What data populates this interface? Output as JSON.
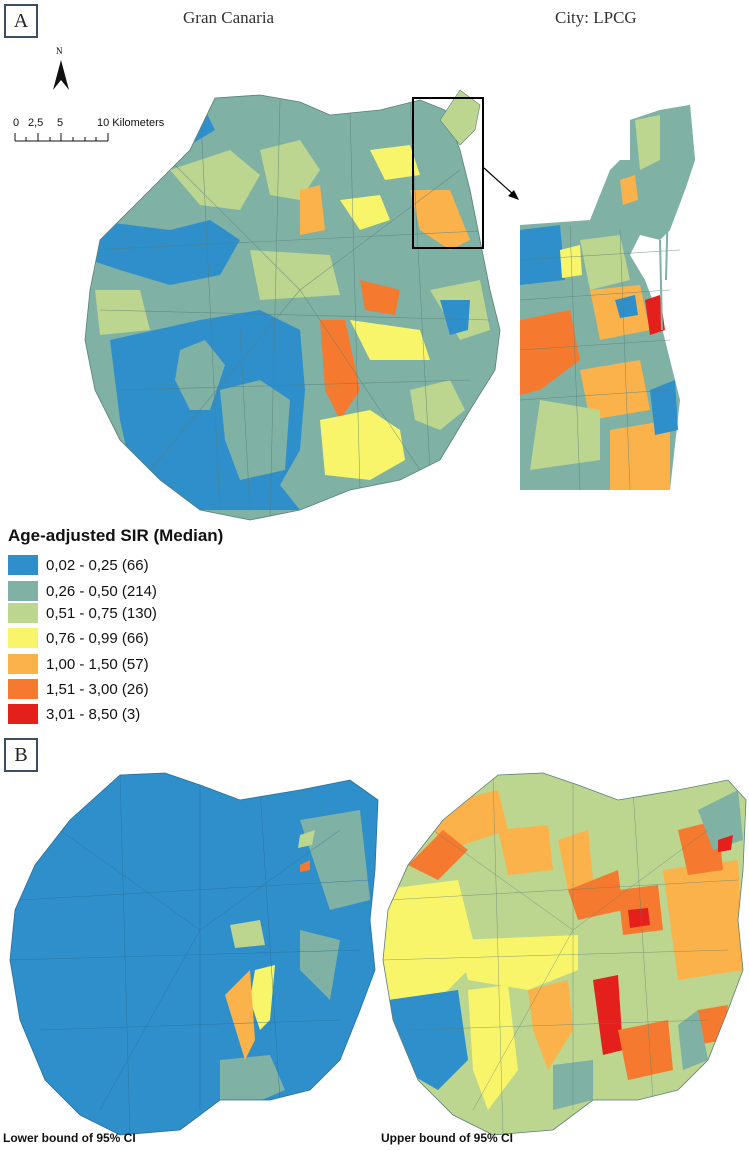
{
  "panels": {
    "a": {
      "label": "A",
      "left_title": "Gran Canaria",
      "right_title": "City: LPCG"
    },
    "b": {
      "label": "B",
      "lower_caption": "Lower bound of 95% CI",
      "upper_caption": "Upper bound of 95% CI"
    }
  },
  "north_arrow": {
    "label": "N"
  },
  "scale_bar": {
    "ticks": [
      "0",
      "2,5",
      "5",
      "10 Kilometers"
    ]
  },
  "legend": {
    "title": "Age-adjusted SIR (Median)",
    "items": [
      {
        "label": "0,02 - 0,25 (66)",
        "color": "#2e8fcb"
      },
      {
        "label": "0,26 - 0,50 (214)",
        "color": "#7fb1a5"
      },
      {
        "label": "0,51 - 0,75 (130)",
        "color": "#bcd58f"
      },
      {
        "label": "0,76 - 0,99 (66)",
        "color": "#f9f56a"
      },
      {
        "label": "1,00 - 1,50 (57)",
        "color": "#fbb24a"
      },
      {
        "label": "1,51 - 3,00 (26)",
        "color": "#f57a2f"
      },
      {
        "label": "3,01 - 8,50 (3)",
        "color": "#e3201c"
      }
    ]
  }
}
